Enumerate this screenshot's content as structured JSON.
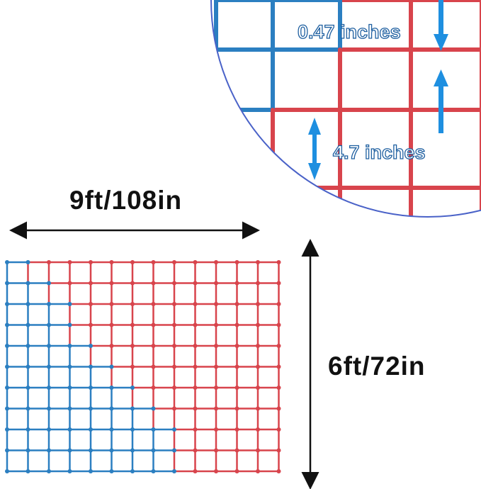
{
  "labels": {
    "width": "9ft/108in",
    "height": "6ft/72in",
    "rope_thickness": "0.47 inches",
    "mesh_size": "4.7 inches"
  },
  "colors": {
    "red": "#d8444c",
    "blue": "#2b7fc1",
    "arrow_blue": "#1e8fe0",
    "circle_border": "#4a62c8"
  },
  "icons": [
    "horizontal-double-arrow-icon",
    "vertical-double-arrow-icon"
  ]
}
